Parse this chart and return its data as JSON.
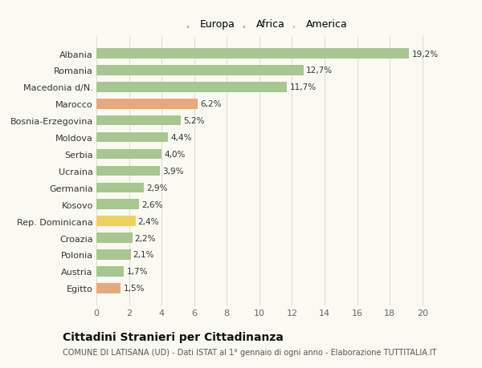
{
  "categories": [
    "Egitto",
    "Austria",
    "Polonia",
    "Croazia",
    "Rep. Dominicana",
    "Kosovo",
    "Germania",
    "Ucraina",
    "Serbia",
    "Moldova",
    "Bosnia-Erzegovina",
    "Marocco",
    "Macedonia d/N.",
    "Romania",
    "Albania"
  ],
  "values": [
    1.5,
    1.7,
    2.1,
    2.2,
    2.4,
    2.6,
    2.9,
    3.9,
    4.0,
    4.4,
    5.2,
    6.2,
    11.7,
    12.7,
    19.2
  ],
  "labels": [
    "1,5%",
    "1,7%",
    "2,1%",
    "2,2%",
    "2,4%",
    "2,6%",
    "2,9%",
    "3,9%",
    "4,0%",
    "4,4%",
    "5,2%",
    "6,2%",
    "11,7%",
    "12,7%",
    "19,2%"
  ],
  "bar_colors": [
    "#e8a87c",
    "#a8c68f",
    "#a8c68f",
    "#a8c68f",
    "#f0d060",
    "#a8c68f",
    "#a8c68f",
    "#a8c68f",
    "#a8c68f",
    "#a8c68f",
    "#a8c68f",
    "#e8a87c",
    "#a8c68f",
    "#a8c68f",
    "#a8c68f"
  ],
  "xlim": [
    0,
    21
  ],
  "xticks": [
    0,
    2,
    4,
    6,
    8,
    10,
    12,
    14,
    16,
    18,
    20
  ],
  "title": "Cittadini Stranieri per Cittadinanza",
  "subtitle": "COMUNE DI LATISANA (UD) - Dati ISTAT al 1° gennaio di ogni anno - Elaborazione TUTTITALIA.IT",
  "background_color": "#fafaf2",
  "grid_color": "#dddddd",
  "legend_labels": [
    "Europa",
    "Africa",
    "America"
  ],
  "legend_colors": [
    "#a8c68f",
    "#e8a87c",
    "#f0d060"
  ]
}
